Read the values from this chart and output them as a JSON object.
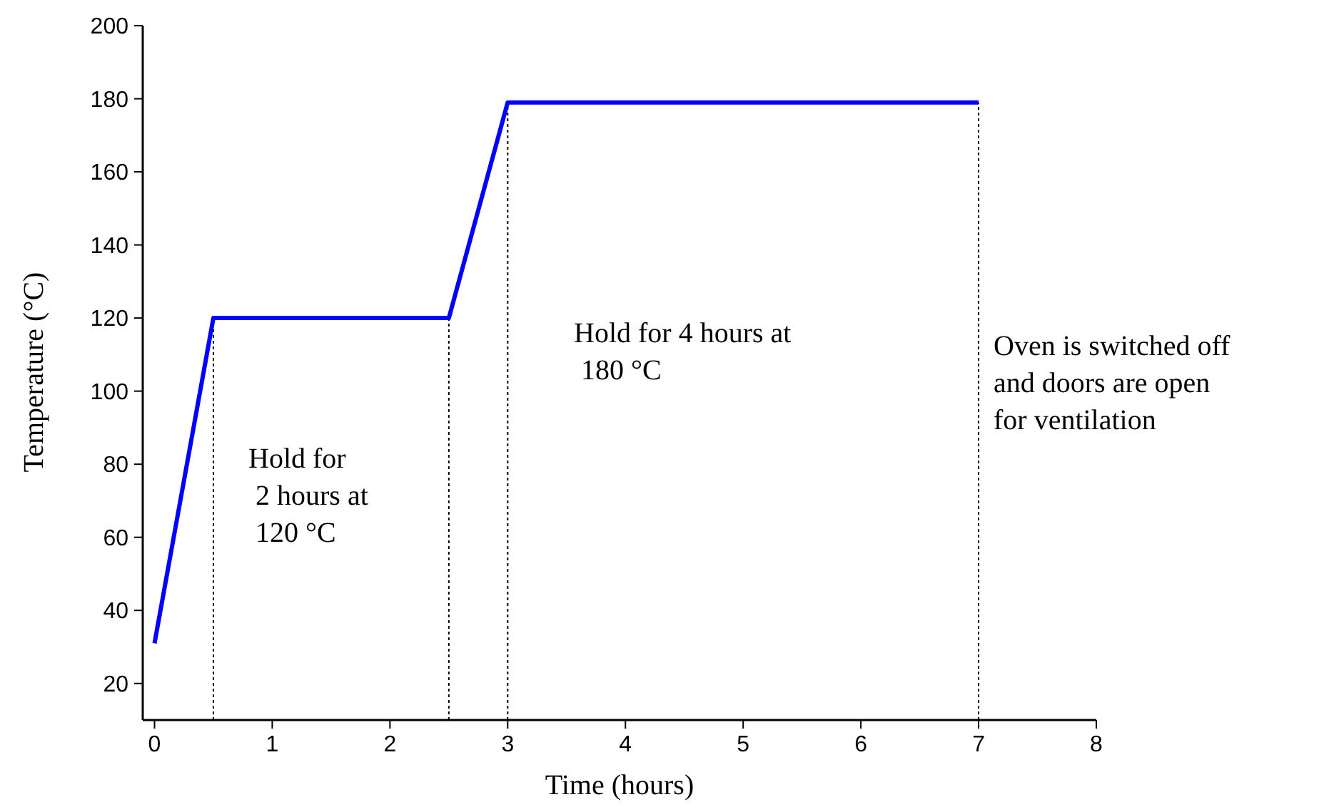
{
  "chart_data": {
    "type": "line",
    "xlabel": "Time (hours)",
    "ylabel": "Temperature (°C)",
    "x": [
      0,
      0.5,
      2.5,
      3,
      7
    ],
    "series": [
      {
        "color": "#0000ff",
        "values": [
          31,
          120,
          120,
          179,
          179
        ]
      }
    ],
    "xlim": [
      -0.1,
      8
    ],
    "xticks": [
      0,
      1,
      2,
      3,
      4,
      5,
      6,
      7,
      8
    ],
    "ylim": [
      10,
      200
    ],
    "yticks": [
      20,
      40,
      60,
      80,
      100,
      120,
      140,
      160,
      180,
      200
    ],
    "grid": false,
    "marker": "none",
    "line_style": "solid",
    "ref_lines": [
      {
        "axis": "x",
        "value": 0.5,
        "color": "#000000",
        "line_style": "dotted"
      },
      {
        "axis": "x",
        "value": 2.5,
        "color": "#000000",
        "line_style": "dotted"
      },
      {
        "axis": "x",
        "value": 3,
        "color": "#000000",
        "line_style": "dotted"
      },
      {
        "axis": "x",
        "value": 7,
        "color": "#000000",
        "line_style": "dotted"
      }
    ],
    "annotations": [
      "Hold for\n 2 hours at\n 120 °C",
      "Hold for 4 hours at\n 180 °C",
      "Oven is switched off\nand doors are open\nfor ventilation"
    ]
  }
}
